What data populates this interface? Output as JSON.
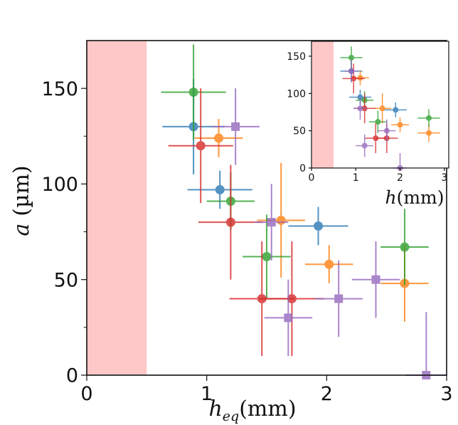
{
  "chart_data": [
    {
      "type": "scatter",
      "role": "main",
      "xlabel": "h_eq(mm)",
      "xlabel_main": "h",
      "xlabel_sub": "eq",
      "xlabel_unit": "(mm)",
      "ylabel": "a (µm)",
      "ylabel_main": "a",
      "ylabel_unit": "(µm)",
      "xlim": [
        0,
        3
      ],
      "ylim": [
        0,
        175
      ],
      "xticks": [
        0,
        1,
        2,
        3
      ],
      "yticks": [
        0,
        50,
        100,
        150
      ],
      "shaded_region": {
        "x0": 0,
        "x1": 0.5,
        "color": "#ffc8c8"
      },
      "grid": false,
      "series": [
        {
          "color": "#2a77b4",
          "marker": "circle",
          "points": [
            {
              "x": 0.89,
              "y": 130,
              "xerr": 0.26,
              "yerr": 25
            },
            {
              "x": 1.11,
              "y": 97,
              "xerr": 0.27,
              "yerr": 10
            },
            {
              "x": 1.93,
              "y": 78,
              "xerr": 0.25,
              "yerr": 10
            }
          ]
        },
        {
          "color": "#ff7f0e",
          "marker": "circle",
          "points": [
            {
              "x": 1.1,
              "y": 124,
              "xerr": 0.2,
              "yerr": 10
            },
            {
              "x": 1.62,
              "y": 81,
              "xerr": 0.2,
              "yerr": 30
            },
            {
              "x": 2.02,
              "y": 58,
              "xerr": 0.2,
              "yerr": 10
            },
            {
              "x": 2.65,
              "y": 48,
              "xerr": 0.2,
              "yerr": 20
            }
          ]
        },
        {
          "color": "#2ca02c",
          "marker": "circle",
          "points": [
            {
              "x": 0.89,
              "y": 148,
              "xerr": 0.27,
              "yerr": 25
            },
            {
              "x": 1.2,
              "y": 91,
              "xerr": 0.2,
              "yerr": 15
            },
            {
              "x": 1.5,
              "y": 62,
              "xerr": 0.2,
              "yerr": 22
            },
            {
              "x": 2.65,
              "y": 67,
              "xerr": 0.2,
              "yerr": 20
            }
          ]
        },
        {
          "color": "#d62728",
          "marker": "circle",
          "points": [
            {
              "x": 0.95,
              "y": 120,
              "xerr": 0.27,
              "yerr": 30
            },
            {
              "x": 1.2,
              "y": 80,
              "xerr": 0.27,
              "yerr": 30
            },
            {
              "x": 1.46,
              "y": 40,
              "xerr": 0.27,
              "yerr": 30
            },
            {
              "x": 1.71,
              "y": 40,
              "xerr": 0.27,
              "yerr": 30
            }
          ]
        },
        {
          "color": "#9467bd",
          "marker": "square",
          "points": [
            {
              "x": 1.24,
              "y": 130,
              "xerr": 0.2,
              "yerr": 20
            },
            {
              "x": 1.54,
              "y": 80,
              "xerr": 0.14,
              "yerr": 20
            },
            {
              "x": 2.1,
              "y": 40,
              "xerr": 0.2,
              "yerr": 20
            },
            {
              "x": 2.41,
              "y": 50,
              "xerr": 0.2,
              "yerr": 20
            },
            {
              "x": 1.68,
              "y": 30,
              "xerr": 0.2,
              "yerr": 20
            },
            {
              "x": 2.83,
              "y": 0,
              "xerr": 0.17,
              "yerr": 33
            }
          ]
        }
      ]
    },
    {
      "type": "scatter",
      "role": "inset",
      "xlabel": "h(mm)",
      "xlabel_main": "h",
      "xlabel_unit": "(mm)",
      "xlim": [
        0,
        3.1
      ],
      "ylim": [
        0,
        170
      ],
      "xticks": [
        0,
        1,
        2,
        3
      ],
      "yticks": [
        0,
        50,
        100,
        150
      ],
      "shaded_region": {
        "x0": 0,
        "x1": 0.5,
        "color": "#ffc8c8"
      },
      "grid": false,
      "series": [
        {
          "color": "#2a77b4",
          "marker": "circle",
          "points": [
            {
              "x": 0.9,
              "y": 130,
              "xerr": 0.25,
              "yerr": 15
            },
            {
              "x": 1.1,
              "y": 95,
              "xerr": 0.25,
              "yerr": 10
            },
            {
              "x": 1.9,
              "y": 78,
              "xerr": 0.25,
              "yerr": 10
            }
          ]
        },
        {
          "color": "#ff7f0e",
          "marker": "circle",
          "points": [
            {
              "x": 1.1,
              "y": 121,
              "xerr": 0.2,
              "yerr": 10
            },
            {
              "x": 1.6,
              "y": 80,
              "xerr": 0.2,
              "yerr": 20
            },
            {
              "x": 2.0,
              "y": 58,
              "xerr": 0.2,
              "yerr": 10
            },
            {
              "x": 2.65,
              "y": 47,
              "xerr": 0.25,
              "yerr": 12
            }
          ]
        },
        {
          "color": "#2ca02c",
          "marker": "circle",
          "points": [
            {
              "x": 0.9,
              "y": 148,
              "xerr": 0.25,
              "yerr": 15
            },
            {
              "x": 1.2,
              "y": 91,
              "xerr": 0.2,
              "yerr": 12
            },
            {
              "x": 1.5,
              "y": 62,
              "xerr": 0.2,
              "yerr": 15
            },
            {
              "x": 2.65,
              "y": 67,
              "xerr": 0.25,
              "yerr": 12
            }
          ]
        },
        {
          "color": "#d62728",
          "marker": "circle",
          "points": [
            {
              "x": 0.95,
              "y": 120,
              "xerr": 0.25,
              "yerr": 20
            },
            {
              "x": 1.2,
              "y": 80,
              "xerr": 0.25,
              "yerr": 20
            },
            {
              "x": 1.45,
              "y": 40,
              "xerr": 0.25,
              "yerr": 20
            },
            {
              "x": 1.7,
              "y": 40,
              "xerr": 0.25,
              "yerr": 20
            }
          ]
        },
        {
          "color": "#9467bd",
          "marker": "circle",
          "points": [
            {
              "x": 0.9,
              "y": 130,
              "xerr": 0.15,
              "yerr": 15
            },
            {
              "x": 1.1,
              "y": 80,
              "xerr": 0.15,
              "yerr": 15
            },
            {
              "x": 1.2,
              "y": 30,
              "xerr": 0.2,
              "yerr": 15
            },
            {
              "x": 1.7,
              "y": 50,
              "xerr": 0.2,
              "yerr": 15
            },
            {
              "x": 2.0,
              "y": 0,
              "xerr": 0.15,
              "yerr": 20
            }
          ]
        }
      ]
    }
  ]
}
